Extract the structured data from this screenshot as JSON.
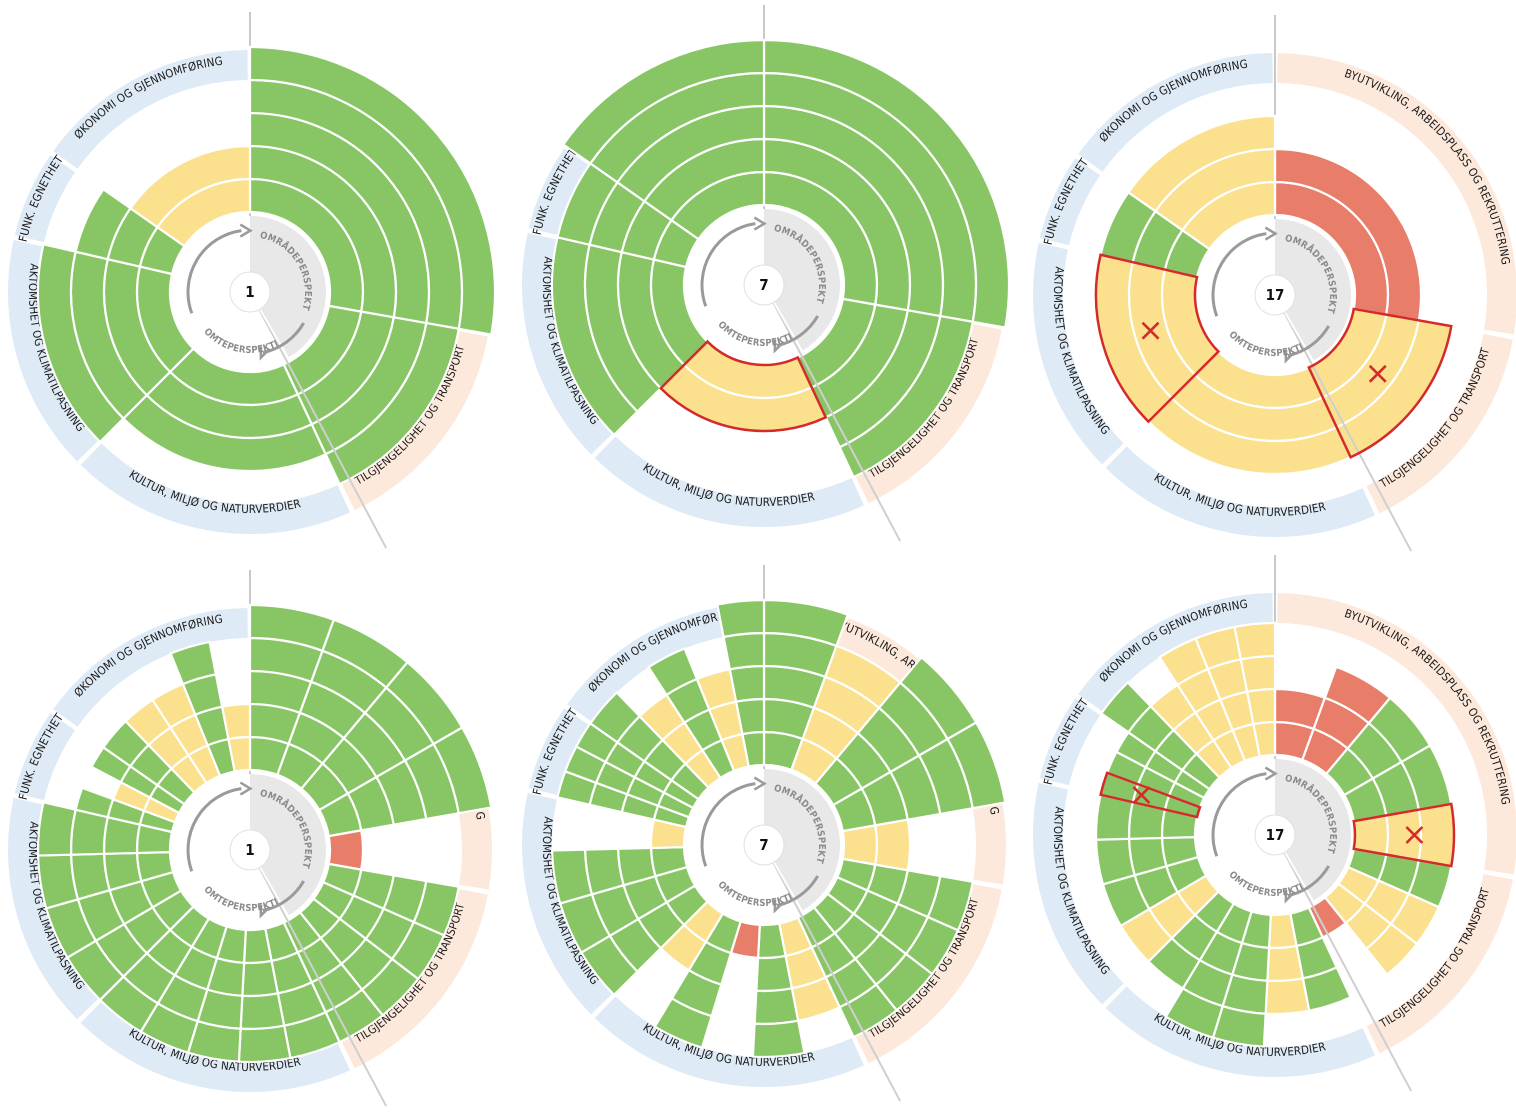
{
  "perspectives": {
    "area": "OMRÅDEPERSPEKTIV",
    "site": "TOMTEPERSPEKTIV"
  },
  "categories": [
    {
      "key": "byutvikling",
      "label": "BYUTVIKLING, ARBEIDSPLASS OG REKRUTTERING",
      "band": "peach"
    },
    {
      "key": "tilgjengelighet",
      "label": "TILGJENGELIGHET OG TRANSPORT",
      "band": "peach"
    },
    {
      "key": "kultur",
      "label": "KULTUR, MILJØ OG NATURVERDIER",
      "band": "blue"
    },
    {
      "key": "aktomshet",
      "label": "AKTOMSHET OG KLIMATILPASNING",
      "band": "blue"
    },
    {
      "key": "funk",
      "label": "FUNK. EGNETHET",
      "band": "blue"
    },
    {
      "key": "okonomi",
      "label": "ØKONOMI OG GJENNOMFØRING",
      "band": "blue"
    }
  ],
  "colors": {
    "green": "#88c665",
    "yellow": "#fbe08e",
    "red": "#e87d6a",
    "highlight": "#d42a2a",
    "band_peach": "#fde9db",
    "band_blue": "#deeaf5",
    "inner_gray": "#e8e8e8",
    "arrow_gray": "#9a9a9a"
  },
  "diagrams": [
    {
      "number": "1",
      "mode": "category",
      "rings": {
        "byutvikling": 5,
        "tilgjengelighet": 4,
        "kultur": 3,
        "aktomshet": 4,
        "funk": 3,
        "okonomi": 2
      },
      "colors": {
        "byutvikling": "green",
        "tilgjengelighet": "green",
        "kultur": "green",
        "aktomshet": "green",
        "funk": "green",
        "okonomi": "yellow"
      },
      "highlight": []
    },
    {
      "number": "7",
      "mode": "category",
      "rings": {
        "byutvikling": 5,
        "tilgjengelighet": 4,
        "kultur": 2,
        "aktomshet": 4,
        "funk": 4,
        "okonomi": 5
      },
      "colors": {
        "byutvikling": "green",
        "tilgjengelighet": "green",
        "kultur": "yellow",
        "aktomshet": "green",
        "funk": "green",
        "okonomi": "green"
      },
      "highlight": [
        "kultur"
      ]
    },
    {
      "number": "17",
      "mode": "category",
      "rings": {
        "byutvikling": 2,
        "tilgjengelighet": 3,
        "kultur": 3,
        "aktomshet": 3,
        "funk": 3,
        "okonomi": 3
      },
      "colors": {
        "byutvikling": "red",
        "tilgjengelighet": "yellow",
        "kultur": "yellow",
        "aktomshet": "yellow",
        "funk": "green",
        "okonomi": "yellow"
      },
      "highlight": [
        "tilgjengelighet",
        "aktomshet"
      ]
    },
    {
      "number": "1",
      "mode": "detail",
      "segments": [
        {
          "rings": 5,
          "color": "green"
        },
        {
          "rings": 5,
          "color": "green"
        },
        {
          "rings": 5,
          "color": "green"
        },
        {
          "rings": 5,
          "color": "green"
        },
        {
          "rings": 1,
          "color": "red"
        },
        {
          "rings": 4,
          "color": "green"
        },
        {
          "rings": 4,
          "color": "green"
        },
        {
          "rings": 4,
          "color": "green"
        },
        {
          "rings": 4,
          "color": "green"
        },
        {
          "rings": 4,
          "color": "green"
        },
        {
          "rings": 4,
          "color": "green"
        },
        {
          "rings": 4,
          "color": "green"
        },
        {
          "rings": 4,
          "color": "green"
        },
        {
          "rings": 4,
          "color": "green"
        },
        {
          "rings": 4,
          "color": "green"
        },
        {
          "rings": 4,
          "color": "green"
        },
        {
          "rings": 4,
          "color": "green"
        },
        {
          "rings": 4,
          "color": "green"
        },
        {
          "rings": 3,
          "color": "green"
        },
        {
          "rings": 2,
          "color": "yellow"
        },
        {
          "rings": 3,
          "color": "green"
        },
        {
          "rings": 3,
          "color": "green"
        },
        {
          "rings": 3,
          "color": "yellow"
        },
        {
          "rings": 3,
          "color": "yellow"
        },
        {
          "rings": 4,
          "color": "green"
        },
        {
          "rings": 2,
          "color": "yellow"
        }
      ],
      "highlight": []
    },
    {
      "number": "7",
      "mode": "detail",
      "segments": [
        {
          "rings": 5,
          "color": "green"
        },
        {
          "rings": 4,
          "color": "yellow"
        },
        {
          "rings": 5,
          "color": "green"
        },
        {
          "rings": 5,
          "color": "green"
        },
        {
          "rings": 2,
          "color": "yellow"
        },
        {
          "rings": 4,
          "color": "green"
        },
        {
          "rings": 4,
          "color": "green"
        },
        {
          "rings": 4,
          "color": "green"
        },
        {
          "rings": 4,
          "color": "green"
        },
        {
          "rings": 3,
          "color": "yellow"
        },
        {
          "rings": 4,
          "color": "green"
        },
        {
          "rings": 1,
          "color": "red"
        },
        {
          "rings": 4,
          "color": "green"
        },
        {
          "rings": 2,
          "color": "yellow"
        },
        {
          "rings": 4,
          "color": "green"
        },
        {
          "rings": 4,
          "color": "green"
        },
        {
          "rings": 4,
          "color": "green"
        },
        {
          "rings": 1,
          "color": "yellow"
        },
        {
          "rings": 4,
          "color": "green"
        },
        {
          "rings": 4,
          "color": "green"
        },
        {
          "rings": 4,
          "color": "green"
        },
        {
          "rings": 4,
          "color": "green"
        },
        {
          "rings": 3,
          "color": "yellow"
        },
        {
          "rings": 4,
          "color": "green"
        },
        {
          "rings": 3,
          "color": "yellow"
        },
        {
          "rings": 5,
          "color": "green"
        }
      ],
      "highlight": []
    },
    {
      "number": "17",
      "mode": "detail",
      "segments": [
        {
          "rings": 2,
          "color": "red"
        },
        {
          "rings": 3,
          "color": "red"
        },
        {
          "rings": 3,
          "color": "green"
        },
        {
          "rings": 3,
          "color": "green"
        },
        {
          "rings": 3,
          "color": "yellow"
        },
        {
          "rings": 3,
          "color": "green"
        },
        {
          "rings": 3,
          "color": "yellow"
        },
        {
          "rings": 3,
          "color": "yellow"
        },
        {
          "rings": 1,
          "color": "red"
        },
        {
          "rings": 3,
          "color": "green"
        },
        {
          "rings": 3,
          "color": "yellow"
        },
        {
          "rings": 4,
          "color": "green"
        },
        {
          "rings": 4,
          "color": "green"
        },
        {
          "rings": 3,
          "color": "green"
        },
        {
          "rings": 3,
          "color": "yellow"
        },
        {
          "rings": 3,
          "color": "green"
        },
        {
          "rings": 3,
          "color": "green"
        },
        {
          "rings": 3,
          "color": "green"
        },
        {
          "rings": 3,
          "color": "green"
        },
        {
          "rings": 3,
          "color": "green"
        },
        {
          "rings": 3,
          "color": "green"
        },
        {
          "rings": 4,
          "color": "green"
        },
        {
          "rings": 3,
          "color": "yellow"
        },
        {
          "rings": 4,
          "color": "yellow"
        },
        {
          "rings": 4,
          "color": "yellow"
        },
        {
          "rings": 4,
          "color": "yellow"
        }
      ],
      "highlight": [
        4,
        18
      ]
    }
  ]
}
